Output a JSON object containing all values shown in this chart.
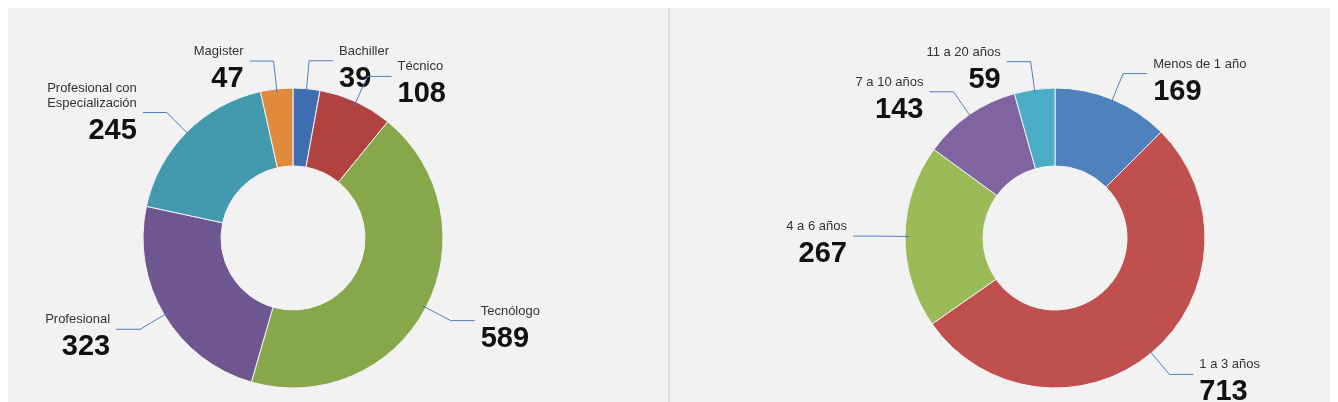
{
  "chart_data": [
    {
      "type": "donut",
      "categories": [
        "Bachiller",
        "Técnico",
        "Tecnólogo",
        "Profesional",
        "Profesional con Especialización",
        "Magister"
      ],
      "values": [
        39,
        108,
        589,
        323,
        245,
        47
      ],
      "colors": [
        "#3f6fb0",
        "#b0433f",
        "#86a84a",
        "#6e5690",
        "#4399ad",
        "#e08a3c"
      ],
      "data_labels": true
    },
    {
      "type": "donut",
      "categories": [
        "Menos de 1 año",
        "1 a 3 años",
        "4 a 6 años",
        "7 a 10 años",
        "11 a 20 años"
      ],
      "values": [
        169,
        713,
        267,
        143,
        59
      ],
      "colors": [
        "#4f81bd",
        "#c0504d",
        "#9bbb59",
        "#8064a2",
        "#4bacc6"
      ],
      "data_labels": true
    }
  ]
}
